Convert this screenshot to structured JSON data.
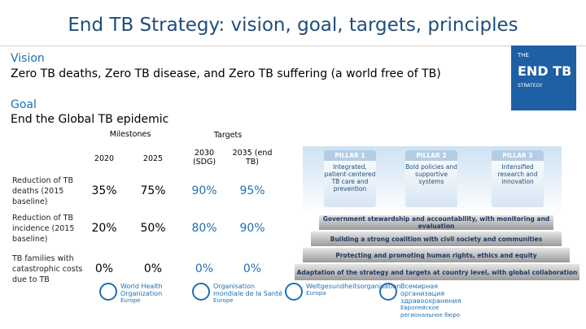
{
  "header": {
    "title": "End TB Strategy: vision, goal, targets, principles"
  },
  "vision": {
    "heading": "Vision",
    "text": "Zero TB deaths, Zero TB disease, and Zero TB suffering (a world free of TB)"
  },
  "goal": {
    "heading": "Goal",
    "text": "End the Global TB epidemic"
  },
  "table": {
    "groups": [
      "Milestones",
      "Targets"
    ],
    "columns": [
      "2020",
      "2025",
      "2030 (SDG)",
      "2035 (end TB)"
    ],
    "rows": [
      {
        "label": "Reduction of TB deaths (2015 baseline)",
        "cells": [
          "35%",
          "75%",
          "90%",
          "95%"
        ]
      },
      {
        "label": "Reduction of TB incidence (2015 baseline)",
        "cells": [
          "20%",
          "50%",
          "80%",
          "90%"
        ]
      },
      {
        "label": "TB families with catastrophic costs due to TB",
        "cells": [
          "0%",
          "0%",
          "0%",
          "0%"
        ]
      }
    ]
  },
  "cover": {
    "line1": "THE",
    "line2": "END TB",
    "line3": "STRATEGY"
  },
  "pillars": [
    {
      "name": "PILLAR 1",
      "text": "Integrated, patient-centered TB care and prevention"
    },
    {
      "name": "PILLAR 2",
      "text": "Bold policies and supportive systems"
    },
    {
      "name": "PILLAR 3",
      "text": "Intensified research and innovation"
    }
  ],
  "principles": [
    "Government stewardship and accountability, with monitoring and evaluation",
    "Building a strong coalition with civil society and communities",
    "Protecting and promoting human rights, ethics and equity",
    "Adaptation of the strategy and targets at country level, with global collaboration"
  ],
  "logos": [
    "World Health Organization",
    "Organisation mondiale de la Santé",
    "Weltgesundheitsorganisation",
    "Всемирная организация здравоохранения"
  ],
  "logo_regions": [
    "Europe",
    "Europe",
    "Europa",
    "Европейское региональное бюро"
  ]
}
